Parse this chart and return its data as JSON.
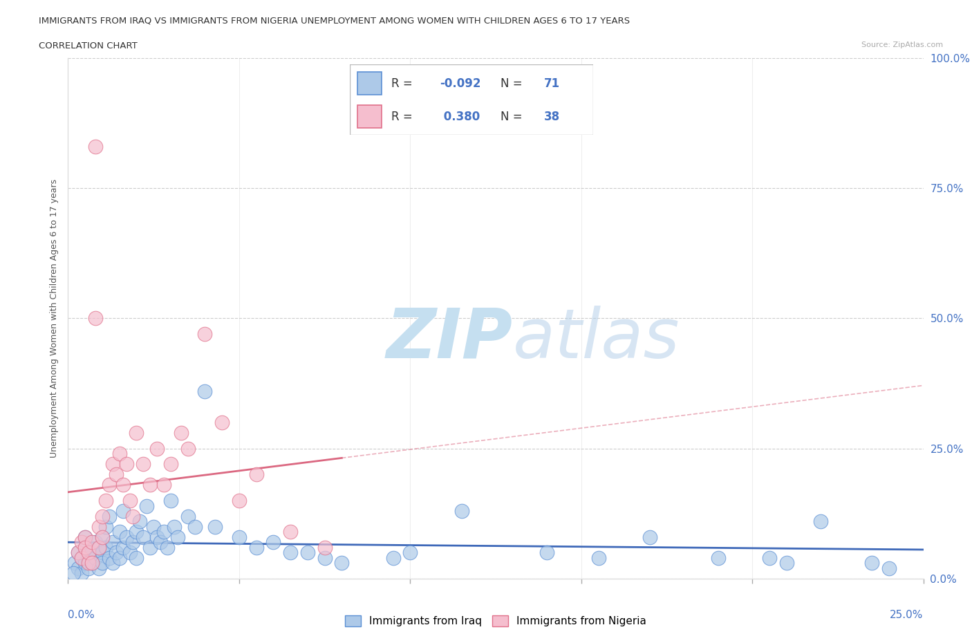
{
  "title_line1": "IMMIGRANTS FROM IRAQ VS IMMIGRANTS FROM NIGERIA UNEMPLOYMENT AMONG WOMEN WITH CHILDREN AGES 6 TO 17 YEARS",
  "title_line2": "CORRELATION CHART",
  "source": "Source: ZipAtlas.com",
  "xlabel_min": "0.0%",
  "xlabel_max": "25.0%",
  "ylabel": "Unemployment Among Women with Children Ages 6 to 17 years",
  "ytick_labels": [
    "0.0%",
    "25.0%",
    "50.0%",
    "75.0%",
    "100.0%"
  ],
  "ytick_values": [
    0,
    25,
    50,
    75,
    100
  ],
  "xlim": [
    0,
    25
  ],
  "ylim": [
    0,
    100
  ],
  "iraq_color": "#adc9e8",
  "iraq_edge_color": "#5b8fd4",
  "nigeria_color": "#f5bece",
  "nigeria_edge_color": "#e0708a",
  "iraq_R": -0.092,
  "iraq_N": 71,
  "nigeria_R": 0.38,
  "nigeria_N": 38,
  "iraq_line_color": "#3461b5",
  "nigeria_line_color": "#d9607a",
  "watermark_zip": "ZIP",
  "watermark_atlas": "atlas",
  "legend_items": [
    "Immigrants from Iraq",
    "Immigrants from Nigeria"
  ],
  "iraq_scatter_x": [
    0.2,
    0.3,
    0.3,
    0.4,
    0.4,
    0.5,
    0.5,
    0.5,
    0.6,
    0.6,
    0.7,
    0.7,
    0.8,
    0.8,
    0.9,
    0.9,
    1.0,
    1.0,
    1.0,
    1.1,
    1.1,
    1.2,
    1.2,
    1.3,
    1.3,
    1.4,
    1.5,
    1.5,
    1.6,
    1.6,
    1.7,
    1.8,
    1.9,
    2.0,
    2.0,
    2.1,
    2.2,
    2.3,
    2.4,
    2.5,
    2.6,
    2.7,
    2.8,
    2.9,
    3.0,
    3.1,
    3.2,
    3.5,
    3.7,
    4.0,
    4.3,
    5.0,
    5.5,
    6.0,
    6.5,
    7.0,
    7.5,
    8.0,
    9.5,
    10.0,
    11.5,
    14.0,
    15.5,
    17.0,
    19.0,
    20.5,
    21.0,
    22.0,
    23.5,
    24.0,
    0.15
  ],
  "iraq_scatter_y": [
    3,
    5,
    2,
    4,
    1,
    6,
    3,
    8,
    4,
    2,
    5,
    3,
    7,
    4,
    6,
    2,
    8,
    5,
    3,
    10,
    6,
    12,
    4,
    7,
    3,
    5,
    9,
    4,
    13,
    6,
    8,
    5,
    7,
    9,
    4,
    11,
    8,
    14,
    6,
    10,
    8,
    7,
    9,
    6,
    15,
    10,
    8,
    12,
    10,
    36,
    10,
    8,
    6,
    7,
    5,
    5,
    4,
    3,
    4,
    5,
    13,
    5,
    4,
    8,
    4,
    4,
    3,
    11,
    3,
    2,
    1
  ],
  "nigeria_scatter_x": [
    0.3,
    0.4,
    0.4,
    0.5,
    0.5,
    0.6,
    0.6,
    0.7,
    0.7,
    0.8,
    0.9,
    0.9,
    1.0,
    1.0,
    1.1,
    1.2,
    1.3,
    1.4,
    1.5,
    1.6,
    1.7,
    1.8,
    1.9,
    2.0,
    2.2,
    2.4,
    2.6,
    2.8,
    3.0,
    3.3,
    3.5,
    4.0,
    4.5,
    5.0,
    5.5,
    6.5,
    7.5,
    0.8
  ],
  "nigeria_scatter_y": [
    5,
    4,
    7,
    8,
    6,
    3,
    5,
    7,
    3,
    50,
    10,
    6,
    12,
    8,
    15,
    18,
    22,
    20,
    24,
    18,
    22,
    15,
    12,
    28,
    22,
    18,
    25,
    18,
    22,
    28,
    25,
    47,
    30,
    15,
    20,
    9,
    6,
    83
  ]
}
